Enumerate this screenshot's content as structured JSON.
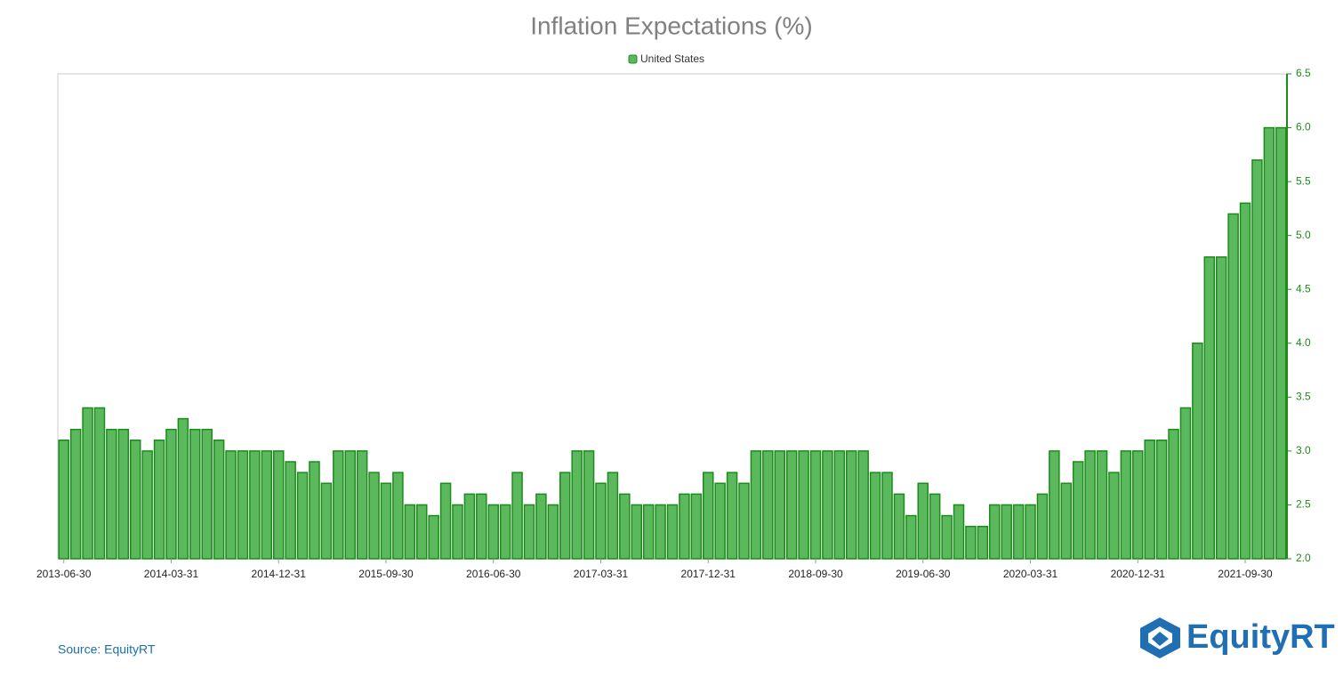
{
  "chart_data": {
    "type": "bar",
    "title": "Inflation Expectations (%)",
    "categories": [
      "2013-06-30",
      null,
      null,
      null,
      null,
      null,
      null,
      null,
      null,
      "2014-03-31",
      null,
      null,
      null,
      null,
      null,
      null,
      null,
      null,
      "2014-12-31",
      null,
      null,
      null,
      null,
      null,
      null,
      null,
      null,
      "2015-09-30",
      null,
      null,
      null,
      null,
      null,
      null,
      null,
      null,
      "2016-06-30",
      null,
      null,
      null,
      null,
      null,
      null,
      null,
      null,
      "2017-03-31",
      null,
      null,
      null,
      null,
      null,
      null,
      null,
      null,
      "2017-12-31",
      null,
      null,
      null,
      null,
      null,
      null,
      null,
      null,
      "2018-09-30",
      null,
      null,
      null,
      null,
      null,
      null,
      null,
      null,
      "2019-06-30",
      null,
      null,
      null,
      null,
      null,
      null,
      null,
      null,
      "2020-03-31",
      null,
      null,
      null,
      null,
      null,
      null,
      null,
      null,
      "2020-12-31",
      null,
      null,
      null,
      null,
      null,
      null,
      null,
      null,
      "2021-09-30",
      null,
      null,
      null
    ],
    "series": [
      {
        "name": "United States",
        "color": "#5cb85c",
        "stroke": "#1a8c1a",
        "values": [
          3.1,
          3.2,
          3.4,
          3.4,
          3.2,
          3.2,
          3.1,
          3.0,
          3.1,
          3.2,
          3.3,
          3.2,
          3.2,
          3.1,
          3.0,
          3.0,
          3.0,
          3.0,
          3.0,
          2.9,
          2.8,
          2.9,
          2.7,
          3.0,
          3.0,
          3.0,
          2.8,
          2.7,
          2.8,
          2.5,
          2.5,
          2.4,
          2.7,
          2.5,
          2.6,
          2.6,
          2.5,
          2.5,
          2.8,
          2.5,
          2.6,
          2.5,
          2.8,
          3.0,
          3.0,
          2.7,
          2.8,
          2.6,
          2.5,
          2.5,
          2.5,
          2.5,
          2.6,
          2.6,
          2.8,
          2.7,
          2.8,
          2.7,
          3.0,
          3.0,
          3.0,
          3.0,
          3.0,
          3.0,
          3.0,
          3.0,
          3.0,
          3.0,
          2.8,
          2.8,
          2.6,
          2.4,
          2.7,
          2.6,
          2.4,
          2.5,
          2.3,
          2.3,
          2.5,
          2.5,
          2.5,
          2.5,
          2.6,
          3.0,
          2.7,
          2.9,
          3.0,
          3.0,
          2.8,
          3.0,
          3.0,
          3.1,
          3.1,
          3.2,
          3.4,
          4.0,
          4.8,
          4.8,
          5.2,
          5.3,
          5.7,
          6.0,
          6.0
        ]
      }
    ],
    "ylim": [
      2.0,
      6.5
    ],
    "yticks": [
      {
        "value": 2.0,
        "label": "2.0"
      },
      2.5,
      {
        "value": 3.0,
        "label": "3.0"
      },
      3.5,
      {
        "value": 4.0,
        "label": "4.0"
      },
      4.5,
      {
        "value": 5.0,
        "label": "5.0"
      },
      5.5,
      {
        "value": 6.0,
        "label": "6.0"
      },
      6.5
    ],
    "y_axis_side": "right",
    "legend": "top",
    "source": "Source: EquityRT",
    "logo": "EquityRT"
  }
}
